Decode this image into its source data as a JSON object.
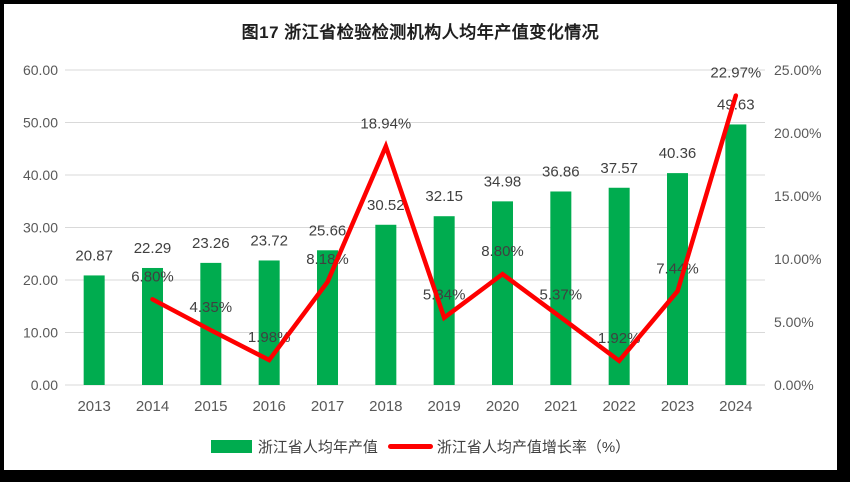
{
  "title": "图17  浙江省检验检测机构人均年产值变化情况",
  "colors": {
    "bar": "#00AC4F",
    "line": "#FE0000",
    "grid": "#D9D9D9",
    "axis_text": "#595959",
    "data_label": "#404040",
    "title_text": "#1F1F1F"
  },
  "legend": [
    {
      "label": "浙江省人均年产值",
      "marker": "bar-swatch"
    },
    {
      "label": "浙江省人均产值增长率（%）",
      "marker": "line-swatch"
    }
  ],
  "chart_data": {
    "type": "bar+line combo",
    "title": "图17  浙江省检验检测机构人均年产值变化情况",
    "xlabel": "",
    "categories": [
      "2013",
      "2014",
      "2015",
      "2016",
      "2017",
      "2018",
      "2019",
      "2020",
      "2021",
      "2022",
      "2023",
      "2024"
    ],
    "series": [
      {
        "name": "浙江省人均年产值",
        "type": "bar",
        "axis": "left",
        "values": [
          20.87,
          22.29,
          23.26,
          23.72,
          25.66,
          30.52,
          32.15,
          34.98,
          36.86,
          37.57,
          40.36,
          49.63
        ],
        "labels": [
          "20.87",
          "22.29",
          "23.26",
          "23.72",
          "25.66",
          "30.52",
          "32.15",
          "34.98",
          "36.86",
          "37.57",
          "40.36",
          "49.63"
        ]
      },
      {
        "name": "浙江省人均产值增长率（%）",
        "type": "line",
        "axis": "right",
        "values": [
          null,
          6.8,
          4.35,
          1.98,
          8.18,
          18.94,
          5.34,
          8.8,
          5.37,
          1.92,
          7.44,
          22.97
        ],
        "labels": [
          null,
          "6.80%",
          "4.35%",
          "1.98%",
          "8.18%",
          "18.94%",
          "5.34%",
          "8.80%",
          "5.37%",
          "1.92%",
          "7.44%",
          "22.97%"
        ]
      }
    ],
    "left_axis": {
      "min": 0,
      "max": 60,
      "step": 10,
      "tick_labels": [
        "0.00",
        "10.00",
        "20.00",
        "30.00",
        "40.00",
        "50.00",
        "60.00"
      ]
    },
    "right_axis": {
      "min": 0,
      "max": 25,
      "step": 5,
      "tick_labels": [
        "0.00%",
        "5.00%",
        "10.00%",
        "15.00%",
        "20.00%",
        "25.00%"
      ]
    },
    "grid": "horizontal only",
    "legend_position": "bottom"
  }
}
